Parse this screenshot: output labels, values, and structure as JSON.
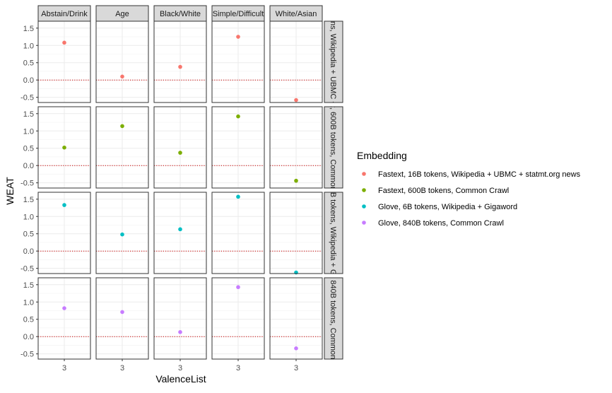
{
  "chart_data": {
    "type": "scatter",
    "facet_columns": [
      "Abstain/Drink",
      "Age",
      "Black/White",
      "Simple/Difficult",
      "White/Asian"
    ],
    "facet_rows": [
      "Fastext, 16B tokens, Wikipedia + UBMC + statmt.org news",
      "Fastext, 600B tokens, Common Crawl",
      "Glove, 6B tokens, Wikipedia + Gigaword",
      "Glove, 840B tokens, Common Crawl"
    ],
    "xlabel": "ValenceList",
    "ylabel": "WEAT",
    "x_ticks": [
      "3"
    ],
    "y_ticks": [
      "-0.5",
      "0.0",
      "0.5",
      "1.0",
      "1.5"
    ],
    "ylim": [
      -0.65,
      1.7
    ],
    "reference_line": {
      "y": 0,
      "color": "#cc0000",
      "style": "dotted"
    },
    "grid": true,
    "legend": {
      "title": "Embedding",
      "position": "right"
    },
    "series": [
      {
        "name": "Fastext, 16B tokens, Wikipedia + UBMC + statmt.org news",
        "color": "#F8766D",
        "x": 3,
        "values": [
          1.08,
          0.1,
          0.38,
          1.25,
          -0.58
        ]
      },
      {
        "name": "Fastext, 600B tokens, Common Crawl",
        "color": "#7CAE00",
        "x": 3,
        "values": [
          0.52,
          1.14,
          0.37,
          1.42,
          -0.44
        ]
      },
      {
        "name": "Glove, 6B tokens, Wikipedia + Gigaword",
        "color": "#00BFC4",
        "x": 3,
        "values": [
          1.33,
          0.48,
          0.63,
          1.57,
          -0.62
        ]
      },
      {
        "name": "Glove, 840B tokens, Common Crawl",
        "color": "#C77CFF",
        "x": 3,
        "values": [
          0.82,
          0.71,
          0.13,
          1.43,
          -0.34
        ]
      }
    ]
  }
}
